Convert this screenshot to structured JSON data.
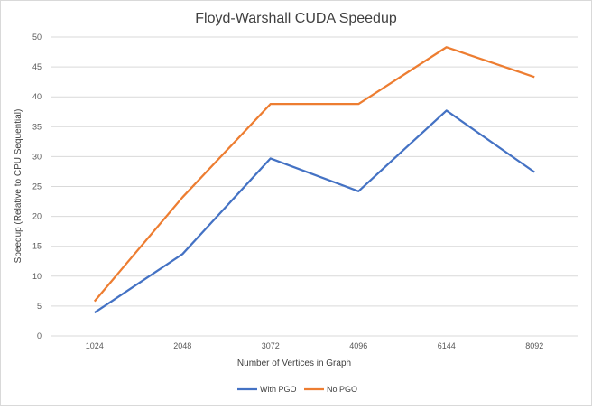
{
  "chart_data": {
    "type": "line",
    "title": "Floyd-Warshall CUDA Speedup",
    "xlabel": "Number of Vertices in Graph",
    "ylabel": "Speedup (Relative to CPU Sequential)",
    "categories": [
      "1024",
      "2048",
      "3072",
      "4096",
      "6144",
      "8092"
    ],
    "ylim": [
      0,
      50
    ],
    "yticks": [
      0,
      5,
      10,
      15,
      20,
      25,
      30,
      35,
      40,
      45,
      50
    ],
    "grid": true,
    "legend_position": "bottom",
    "series": [
      {
        "name": "With PGO",
        "color": "#4472c4",
        "values": [
          3.9,
          13.7,
          29.7,
          24.2,
          37.7,
          27.4
        ]
      },
      {
        "name": "No PGO",
        "color": "#ed7d31",
        "values": [
          5.8,
          23.2,
          38.8,
          38.8,
          48.3,
          43.3
        ]
      }
    ]
  }
}
